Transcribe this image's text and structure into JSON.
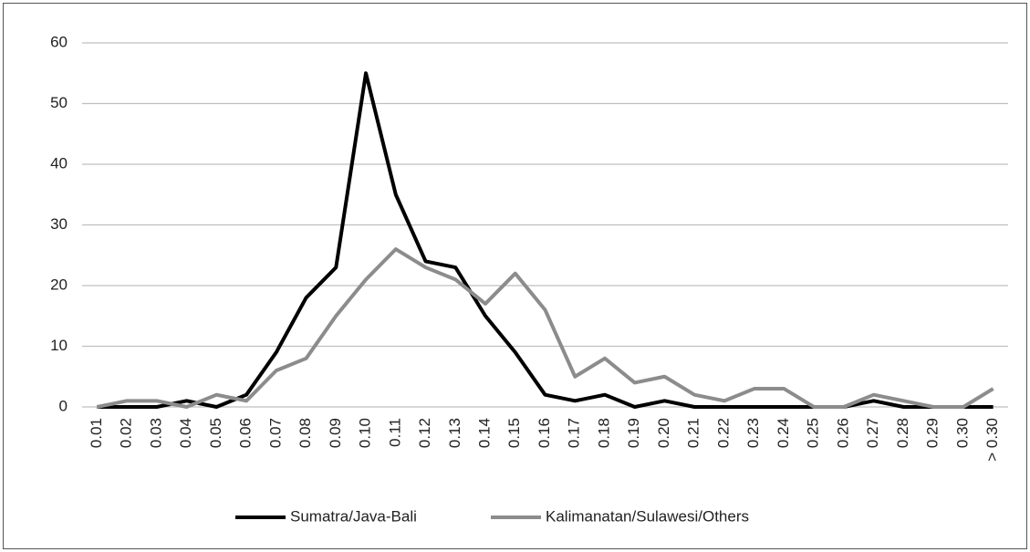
{
  "chart_data": {
    "type": "line",
    "categories": [
      "0.01",
      "0.02",
      "0.03",
      "0.04",
      "0.05",
      "0.06",
      "0.07",
      "0.08",
      "0.09",
      "0.10",
      "0.11",
      "0.12",
      "0.13",
      "0.14",
      "0.15",
      "0.16",
      "0.17",
      "0.18",
      "0.19",
      "0.20",
      "0.21",
      "0.22",
      "0.23",
      "0.24",
      "0.25",
      "0.26",
      "0.27",
      "0.28",
      "0.29",
      "0.30",
      "> 0.30"
    ],
    "series": [
      {
        "name": "Sumatra/Java-Bali",
        "color": "#000000",
        "values": [
          0,
          0,
          0,
          1,
          0,
          2,
          9,
          18,
          23,
          55,
          35,
          24,
          23,
          15,
          9,
          2,
          1,
          2,
          0,
          1,
          0,
          0,
          0,
          0,
          0,
          0,
          1,
          0,
          0,
          0,
          0
        ]
      },
      {
        "name": "Kalimanatan/Sulawesi/Others",
        "color": "#8c8c8c",
        "values": [
          0,
          1,
          1,
          0,
          2,
          1,
          6,
          8,
          15,
          21,
          26,
          23,
          21,
          17,
          22,
          16,
          5,
          8,
          4,
          5,
          2,
          1,
          3,
          3,
          0,
          0,
          2,
          1,
          0,
          0,
          3
        ]
      }
    ],
    "ylim": [
      0,
      60
    ],
    "yticks": [
      0,
      10,
      20,
      30,
      40,
      50,
      60
    ],
    "grid": true,
    "legend": "bottom"
  }
}
